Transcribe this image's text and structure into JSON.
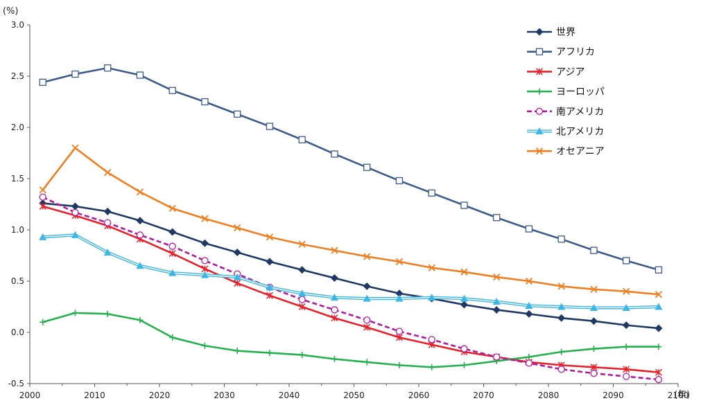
{
  "chart_data": {
    "type": "line",
    "y_unit": "(%)",
    "x_unit": "(年)",
    "xlim": [
      2000,
      2100
    ],
    "ylim": [
      -0.5,
      3.0
    ],
    "x_ticks": [
      2000,
      2010,
      2020,
      2030,
      2040,
      2050,
      2060,
      2070,
      2080,
      2090,
      2100
    ],
    "y_ticks": [
      -0.5,
      0.0,
      0.5,
      1.0,
      1.5,
      2.0,
      2.5,
      3.0
    ],
    "x_tick_labels": [
      "2000",
      "2010",
      "2020",
      "2030",
      "2040",
      "2050",
      "2060",
      "2070",
      "2080",
      "2090",
      "2100"
    ],
    "y_tick_labels": [
      "-0.5",
      "0.0",
      "0.5",
      "1.0",
      "1.5",
      "2.0",
      "2.5",
      "3.0"
    ],
    "grid": false,
    "legend_position": "top-right",
    "x": [
      2002,
      2007,
      2012,
      2017,
      2022,
      2027,
      2032,
      2037,
      2042,
      2047,
      2052,
      2057,
      2062,
      2067,
      2072,
      2077,
      2082,
      2087,
      2092,
      2097
    ],
    "series": [
      {
        "name": "世界",
        "color": "#1f3864",
        "marker": "diamond",
        "dash": "solid",
        "values": [
          1.26,
          1.23,
          1.18,
          1.09,
          0.98,
          0.87,
          0.78,
          0.69,
          0.61,
          0.53,
          0.45,
          0.38,
          0.33,
          0.27,
          0.22,
          0.18,
          0.14,
          0.11,
          0.07,
          0.04
        ]
      },
      {
        "name": "アフリカ",
        "color": "#3b5a8a",
        "marker": "square-open",
        "dash": "solid",
        "values": [
          2.44,
          2.52,
          2.58,
          2.51,
          2.36,
          2.25,
          2.13,
          2.01,
          1.88,
          1.74,
          1.61,
          1.48,
          1.36,
          1.24,
          1.12,
          1.01,
          0.91,
          0.8,
          0.7,
          0.61
        ]
      },
      {
        "name": "アジア",
        "color": "#e8202a",
        "marker": "asterisk",
        "dash": "solid",
        "values": [
          1.23,
          1.14,
          1.04,
          0.91,
          0.77,
          0.62,
          0.48,
          0.36,
          0.25,
          0.14,
          0.05,
          -0.05,
          -0.12,
          -0.19,
          -0.24,
          -0.29,
          -0.32,
          -0.34,
          -0.36,
          -0.39
        ]
      },
      {
        "name": "ヨーロッパ",
        "color": "#22b14c",
        "marker": "plus",
        "dash": "solid",
        "values": [
          0.1,
          0.19,
          0.18,
          0.12,
          -0.05,
          -0.13,
          -0.18,
          -0.2,
          -0.22,
          -0.26,
          -0.29,
          -0.32,
          -0.34,
          -0.32,
          -0.28,
          -0.24,
          -0.19,
          -0.16,
          -0.14,
          -0.14
        ]
      },
      {
        "name": "南アメリカ",
        "color": "#b5179e",
        "marker": "circle-open",
        "dash": "dashed",
        "values": [
          1.32,
          1.17,
          1.07,
          0.95,
          0.84,
          0.7,
          0.57,
          0.44,
          0.32,
          0.22,
          0.12,
          0.01,
          -0.07,
          -0.16,
          -0.24,
          -0.3,
          -0.36,
          -0.4,
          -0.43,
          -0.46
        ]
      },
      {
        "name": "北アメリカ",
        "color": "#3cb6e6",
        "marker": "triangle",
        "dash": "double",
        "values": [
          0.93,
          0.95,
          0.78,
          0.65,
          0.58,
          0.56,
          0.54,
          0.44,
          0.38,
          0.34,
          0.33,
          0.33,
          0.34,
          0.33,
          0.3,
          0.26,
          0.25,
          0.24,
          0.24,
          0.25
        ]
      },
      {
        "name": "オセアニア",
        "color": "#f07d1e",
        "marker": "x",
        "dash": "solid",
        "values": [
          1.39,
          1.8,
          1.56,
          1.37,
          1.21,
          1.11,
          1.02,
          0.93,
          0.86,
          0.8,
          0.74,
          0.69,
          0.63,
          0.59,
          0.54,
          0.5,
          0.45,
          0.42,
          0.4,
          0.37
        ]
      }
    ]
  }
}
